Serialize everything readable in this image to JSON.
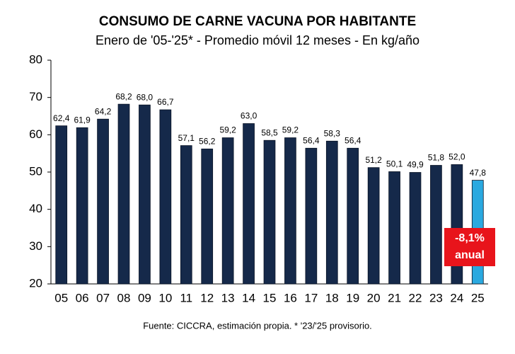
{
  "chart_data": {
    "type": "bar",
    "title": "CONSUMO DE CARNE VACUNA POR HABITANTE",
    "subtitle": "Enero de '05-'25* - Promedio móvil 12 meses -  En kg/año",
    "categories": [
      "05",
      "06",
      "07",
      "08",
      "09",
      "10",
      "11",
      "12",
      "13",
      "14",
      "15",
      "16",
      "17",
      "18",
      "19",
      "20",
      "21",
      "22",
      "23",
      "24",
      "25"
    ],
    "values": [
      62.4,
      61.9,
      64.2,
      68.2,
      68.0,
      66.7,
      57.1,
      56.2,
      59.2,
      63.0,
      58.5,
      59.2,
      56.4,
      58.3,
      56.4,
      51.2,
      50.1,
      49.9,
      51.8,
      52.0,
      47.8
    ],
    "value_labels": [
      "62,4",
      "61,9",
      "64,2",
      "68,2",
      "68,0",
      "66,7",
      "57,1",
      "56,2",
      "59,2",
      "63,0",
      "58,5",
      "59,2",
      "56,4",
      "58,3",
      "56,4",
      "51,2",
      "50,1",
      "49,9",
      "51,8",
      "52,0",
      "47,8"
    ],
    "colors": [
      "#15294a",
      "#15294a",
      "#15294a",
      "#15294a",
      "#15294a",
      "#15294a",
      "#15294a",
      "#15294a",
      "#15294a",
      "#15294a",
      "#15294a",
      "#15294a",
      "#15294a",
      "#15294a",
      "#15294a",
      "#15294a",
      "#15294a",
      "#15294a",
      "#15294a",
      "#15294a",
      "#2aa9e0"
    ],
    "ylim": [
      20,
      80
    ],
    "yticks": [
      20,
      30,
      40,
      50,
      60,
      70,
      80
    ],
    "grid": false,
    "annotation": {
      "lines": [
        "-8,1%",
        "anual"
      ],
      "color": "#e8141b"
    },
    "source": "Fuente: CICCRA, estimación propia. * '23/'25 provisorio."
  }
}
